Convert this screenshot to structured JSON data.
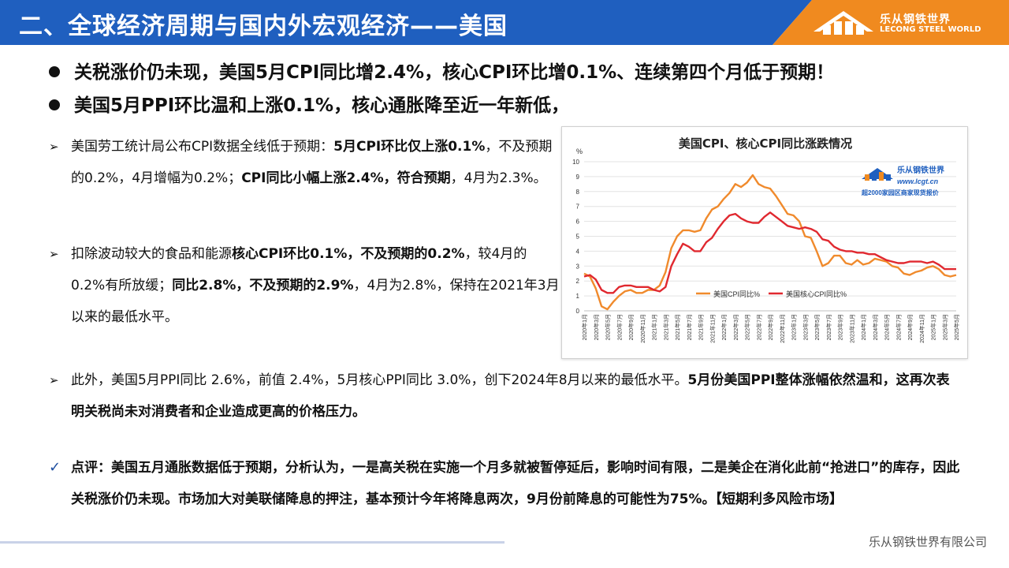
{
  "header": {
    "title": "二、全球经济周期与国内外宏观经济——美国",
    "logo_cn": "乐从钢铁世界",
    "logo_en": "LECONG STEEL WORLD",
    "colors": {
      "blue": "#1f5fbf",
      "orange": "#f08a1f"
    }
  },
  "bullets": [
    "关税涨价仍未现，美国5月CPI同比增2.4%，核心CPI环比增0.1%、连续第四个月低于预期！",
    "美国5月PPI环比温和上涨0.1%，核心通胀降至近一年新低，"
  ],
  "paragraphs": {
    "p1_a": "美国劳工统计局公布CPI数据全线低于预期：",
    "p1_b": "5月CPI环比仅上涨0.1%",
    "p1_c": "，不及预期的0.2%，4月增幅为0.2%；",
    "p1_d": "CPI同比小幅上涨2.4%，符合预期",
    "p1_e": "，4月为2.3%。",
    "p2_a": "扣除波动较大的食品和能源",
    "p2_b": "核心CPI环比0.1%，不及预期的0.2%",
    "p2_c": "，较4月的0.2%有所放缓；",
    "p2_d": "同比2.8%，不及预期的2.9%",
    "p2_e": "，4月为2.8%，保持在2021年3月以来的最低水平。",
    "p3_a": "此外，美国5月PPI同比 2.6%，前值 2.4%，5月核心PPI同比 3.0%，创下2024年8月以来的最低水平。",
    "p3_b": "5月份美国PPI整体涨幅依然温和，这再次表明关税尚未对消费者和企业造成更高的价格压力。",
    "p4": "点评：美国五月通胀数据低于预期，分析认为，一是高关税在实施一个月多就被暂停延后，影响时间有限，二是美企在消化此前“抢进口”的库存，因此关税涨价仍未现。市场加大对美联储降息的押注，基本预计今年将降息两次，9月份前降息的可能性为75%。【短期利多风险市场】"
  },
  "footer": "乐从钢铁世界有限公司",
  "chart_data": {
    "type": "line",
    "title": "美国CPI、核心CPI同比涨跌情况",
    "ylabel": "%",
    "ylim": [
      0,
      10
    ],
    "yticks": [
      0,
      1,
      2,
      3,
      4,
      5,
      6,
      7,
      8,
      9,
      10
    ],
    "xtick_labels": [
      "2020年1月",
      "2020年3月",
      "2020年5月",
      "2020年7月",
      "2020年9月",
      "2020年11月",
      "2021年1月",
      "2021年3月",
      "2021年5月",
      "2021年7月",
      "2021年9月",
      "2021年11月",
      "2022年1月",
      "2022年3月",
      "2022年5月",
      "2022年7月",
      "2022年9月",
      "2022年11月",
      "2023年1月",
      "2023年3月",
      "2023年5月",
      "2023年7月",
      "2023年9月",
      "2023年11月",
      "2024年1月",
      "2024年3月",
      "2024年5月",
      "2024年7月",
      "2024年9月",
      "2024年11月",
      "2025年1月",
      "2025年3月",
      "2025年5月"
    ],
    "watermark_cn": "乐从钢铁世界",
    "watermark_url": "www.lcgt.cn",
    "watermark_note": "超2000家园区商家现货报价",
    "legend_position": "bottom-center",
    "series": [
      {
        "name": "美国CPI同比%",
        "color": "#f08a2c",
        "values": [
          2.5,
          2.3,
          1.5,
          0.3,
          0.1,
          0.6,
          1.0,
          1.3,
          1.4,
          1.2,
          1.2,
          1.4,
          1.4,
          1.7,
          2.6,
          4.2,
          5.0,
          5.4,
          5.4,
          5.3,
          5.4,
          6.2,
          6.8,
          7.0,
          7.5,
          7.9,
          8.5,
          8.3,
          8.6,
          9.1,
          8.5,
          8.3,
          8.2,
          7.7,
          7.1,
          6.5,
          6.4,
          6.0,
          5.0,
          4.9,
          4.0,
          3.0,
          3.2,
          3.7,
          3.7,
          3.2,
          3.1,
          3.4,
          3.1,
          3.2,
          3.5,
          3.4,
          3.3,
          3.0,
          2.9,
          2.5,
          2.4,
          2.6,
          2.7,
          2.9,
          3.0,
          2.8,
          2.4,
          2.3,
          2.4
        ]
      },
      {
        "name": "美国核心CPI同比%",
        "color": "#e0282f",
        "values": [
          2.3,
          2.4,
          2.1,
          1.4,
          1.2,
          1.2,
          1.6,
          1.7,
          1.7,
          1.6,
          1.6,
          1.6,
          1.4,
          1.3,
          1.6,
          3.0,
          3.8,
          4.5,
          4.3,
          4.0,
          4.0,
          4.6,
          4.9,
          5.5,
          6.0,
          6.4,
          6.5,
          6.2,
          6.0,
          5.9,
          5.9,
          6.3,
          6.6,
          6.3,
          6.0,
          5.7,
          5.6,
          5.5,
          5.6,
          5.5,
          5.3,
          4.8,
          4.7,
          4.3,
          4.1,
          4.0,
          4.0,
          3.9,
          3.9,
          3.8,
          3.8,
          3.6,
          3.4,
          3.3,
          3.2,
          3.2,
          3.3,
          3.3,
          3.3,
          3.2,
          3.3,
          3.1,
          2.8,
          2.8,
          2.8
        ]
      }
    ]
  }
}
